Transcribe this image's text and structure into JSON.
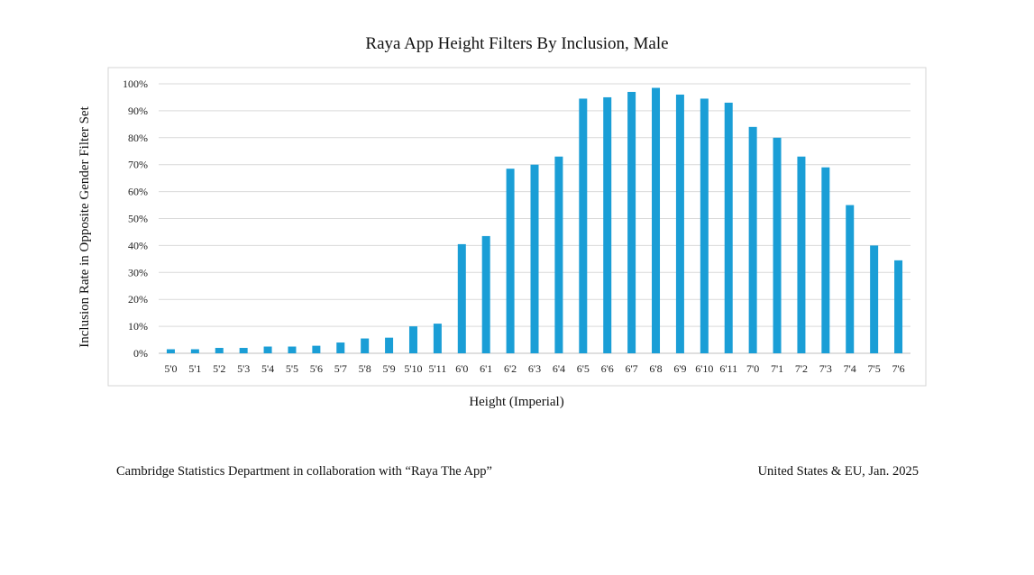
{
  "chart_data": {
    "type": "bar",
    "title": "Raya App Height Filters By Inclusion, Male",
    "xlabel": "Height (Imperial)",
    "ylabel": "Inclusion Rate in Opposite Gender Filter Set",
    "ylim": [
      0,
      100
    ],
    "yticks": [
      "0%",
      "10%",
      "20%",
      "30%",
      "40%",
      "50%",
      "60%",
      "70%",
      "80%",
      "90%",
      "100%"
    ],
    "grid": true,
    "bar_color": "#1a9ed6",
    "categories": [
      "5'0",
      "5'1",
      "5'2",
      "5'3",
      "5'4",
      "5'5",
      "5'6",
      "5'7",
      "5'8",
      "5'9",
      "5'10",
      "5'11",
      "6'0",
      "6'1",
      "6'2",
      "6'3",
      "6'4",
      "6'5",
      "6'6",
      "6'7",
      "6'8",
      "6'9",
      "6'10",
      "6'11",
      "7'0",
      "7'1",
      "7'2",
      "7'3",
      "7'4",
      "7'5",
      "7'6"
    ],
    "values": [
      1.5,
      1.5,
      2,
      2,
      2.5,
      2.5,
      2.8,
      4,
      5.5,
      5.8,
      10,
      11,
      40.5,
      43.5,
      68.5,
      70,
      73,
      94.5,
      95,
      97,
      98.5,
      96,
      94.5,
      93,
      84,
      80,
      73,
      69,
      55,
      40,
      34.5
    ]
  },
  "footer": {
    "left": "Cambridge Statistics Department in collaboration with “Raya The App”",
    "right": "United States & EU, Jan. 2025"
  }
}
